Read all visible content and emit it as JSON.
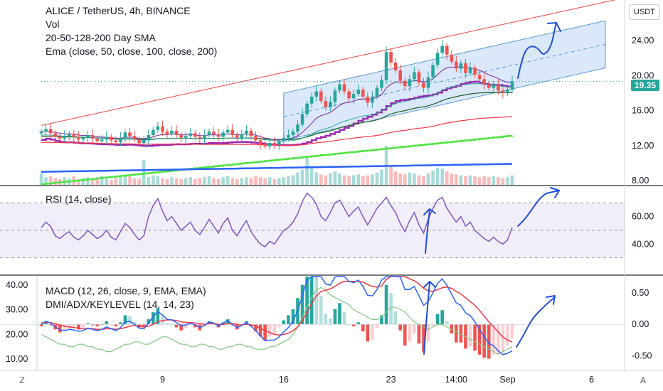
{
  "header": {
    "symbol_line": "ALICE / TetherUS, 4h, BINANCE",
    "indicators": [
      "Vol",
      "20-50-128-200 Day SMA",
      "Ema (close, 50, close, 100, close, 200)"
    ]
  },
  "currency_button": "USDT",
  "last_price": "19.35",
  "corner_buttons": {
    "left": "Z",
    "right": "A"
  },
  "colors": {
    "up": "#26a69a",
    "down": "#ef5350",
    "channel_fill": "#bbd6f5",
    "channel_line": "#5b9bd5",
    "rsi": "#7e57c2",
    "macd": "#2962ff",
    "signal": "#f23645",
    "adx": "#81c784",
    "sma_purple": "#9c27b0",
    "sma_green": "#4caf50",
    "sma_blue": "#2962ff",
    "ema": "#f23645"
  },
  "time_axis": {
    "ticks": [
      "9",
      "16",
      "23",
      "14:00",
      "Sep",
      "6"
    ]
  },
  "chart_data": [
    {
      "type": "candlestick",
      "title": "ALICE / TetherUS, 4h, BINANCE",
      "y_ticks": [
        "24.00",
        "20.00",
        "16.00",
        "12.00",
        "8.00"
      ],
      "ylim": [
        8,
        28
      ],
      "closes": [
        13.6,
        13.9,
        13.4,
        13.0,
        12.8,
        13.1,
        13.3,
        13.0,
        12.7,
        12.9,
        13.2,
        12.8,
        12.5,
        12.7,
        13.0,
        12.6,
        12.4,
        12.9,
        13.5,
        13.1,
        12.7,
        12.3,
        12.6,
        13.2,
        13.8,
        14.2,
        13.6,
        13.3,
        13.7,
        13.2,
        12.9,
        13.1,
        13.4,
        13.0,
        12.8,
        13.2,
        13.6,
        13.3,
        13.0,
        13.5,
        13.8,
        13.2,
        12.9,
        13.3,
        13.7,
        13.1,
        12.6,
        12.2,
        11.9,
        12.3,
        12.1,
        12.5,
        12.9,
        13.2,
        13.6,
        14.4,
        15.6,
        16.8,
        17.6,
        18.2,
        17.1,
        16.4,
        17.0,
        18.3,
        19.0,
        18.2,
        17.4,
        17.9,
        18.4,
        17.6,
        16.9,
        17.6,
        18.6,
        19.5,
        22.7,
        21.5,
        20.6,
        19.4,
        18.8,
        19.6,
        20.4,
        19.2,
        18.6,
        19.8,
        21.2,
        22.6,
        23.4,
        22.4,
        21.6,
        20.8,
        21.4,
        20.3,
        20.9,
        20.1,
        19.6,
        19.0,
        18.6,
        18.9,
        18.3,
        18.0,
        18.4,
        19.35
      ],
      "volume": [
        1.2,
        0.8,
        0.9,
        0.7,
        0.6,
        0.8,
        0.7,
        0.9,
        0.6,
        0.7,
        0.8,
        0.6,
        0.7,
        0.9,
        0.6,
        0.5,
        0.7,
        0.8,
        1.1,
        0.9,
        0.7,
        0.6,
        2.6,
        0.8,
        1.0,
        0.9,
        0.7,
        0.6,
        0.8,
        0.7,
        0.6,
        0.7,
        0.8,
        0.6,
        0.7,
        0.8,
        0.9,
        0.7,
        0.6,
        0.8,
        0.9,
        0.7,
        0.6,
        0.7,
        0.8,
        0.7,
        0.9,
        0.8,
        0.7,
        0.8,
        0.6,
        0.7,
        0.8,
        0.9,
        1.0,
        1.3,
        1.6,
        2.8,
        1.8,
        1.3,
        1.1,
        1.0,
        1.2,
        1.4,
        1.2,
        1.0,
        0.9,
        1.0,
        1.1,
        0.9,
        1.0,
        1.1,
        1.3,
        1.6,
        4.1,
        2.0,
        1.4,
        1.2,
        1.1,
        1.3,
        1.2,
        1.0,
        0.9,
        1.2,
        1.5,
        1.8,
        1.7,
        1.4,
        1.2,
        1.1,
        1.0,
        0.9,
        1.0,
        0.9,
        0.8,
        0.9,
        0.8,
        0.9,
        0.8,
        0.7,
        0.8,
        1.0
      ]
    },
    {
      "type": "line",
      "title": "RSI (14, close)",
      "y_ticks": [
        "60.00",
        "40.00"
      ],
      "ylim": [
        20,
        80
      ],
      "values": [
        52,
        56,
        53,
        46,
        44,
        47,
        49,
        45,
        43,
        46,
        50,
        47,
        44,
        46,
        50,
        45,
        43,
        49,
        55,
        52,
        47,
        43,
        46,
        60,
        68,
        73,
        64,
        57,
        60,
        55,
        50,
        53,
        56,
        50,
        47,
        52,
        58,
        53,
        48,
        55,
        59,
        50,
        46,
        52,
        57,
        49,
        44,
        40,
        38,
        42,
        40,
        45,
        50,
        52,
        56,
        62,
        71,
        77,
        74,
        69,
        60,
        57,
        63,
        70,
        72,
        66,
        60,
        64,
        67,
        60,
        54,
        60,
        66,
        70,
        74,
        68,
        63,
        55,
        49,
        57,
        63,
        54,
        48,
        58,
        66,
        72,
        74,
        66,
        61,
        56,
        60,
        53,
        56,
        50,
        47,
        44,
        42,
        45,
        42,
        40,
        43,
        52
      ]
    },
    {
      "type": "line",
      "title": "MACD (12, 26, close, 9, EMA, EMA)",
      "y_ticks": [
        "0.50",
        "0.00",
        "-0.50"
      ],
      "ylim": [
        -0.65,
        0.7
      ],
      "series": [
        {
          "name": "MACD",
          "values": [
            0.0,
            0.05,
            0.02,
            -0.04,
            -0.09,
            -0.1,
            -0.08,
            -0.09,
            -0.11,
            -0.1,
            -0.06,
            -0.08,
            -0.1,
            -0.08,
            -0.04,
            -0.07,
            -0.1,
            -0.05,
            0.04,
            0.05,
            0.0,
            -0.06,
            -0.07,
            0.02,
            0.12,
            0.2,
            0.15,
            0.08,
            0.07,
            0.03,
            -0.02,
            -0.01,
            0.02,
            -0.01,
            -0.05,
            -0.02,
            0.04,
            0.02,
            -0.03,
            0.02,
            0.06,
            0.0,
            -0.05,
            -0.02,
            0.03,
            -0.03,
            -0.1,
            -0.18,
            -0.26,
            -0.25,
            -0.25,
            -0.2,
            -0.12,
            -0.05,
            0.05,
            0.22,
            0.45,
            0.7,
            0.9,
            0.95,
            0.8,
            0.64,
            0.62,
            0.75,
            0.86,
            0.8,
            0.68,
            0.66,
            0.7,
            0.6,
            0.46,
            0.45,
            0.55,
            0.7,
            1.1,
            1.1,
            0.95,
            0.75,
            0.55,
            0.55,
            0.6,
            0.45,
            0.3,
            0.36,
            0.5,
            0.65,
            0.72,
            0.62,
            0.48,
            0.34,
            0.3,
            0.18,
            0.14,
            0.04,
            -0.08,
            -0.2,
            -0.3,
            -0.34,
            -0.42,
            -0.48,
            -0.46,
            -0.42
          ]
        },
        {
          "name": "Signal",
          "values": [
            0.02,
            0.03,
            0.03,
            0.01,
            -0.01,
            -0.03,
            -0.04,
            -0.05,
            -0.06,
            -0.07,
            -0.07,
            -0.07,
            -0.08,
            -0.08,
            -0.07,
            -0.07,
            -0.08,
            -0.07,
            -0.05,
            -0.03,
            -0.02,
            -0.03,
            -0.04,
            -0.03,
            0.0,
            0.04,
            0.06,
            0.07,
            0.07,
            0.06,
            0.04,
            0.03,
            0.03,
            0.02,
            0.01,
            0.0,
            0.01,
            0.01,
            0.0,
            0.0,
            0.01,
            0.01,
            0.0,
            -0.01,
            0.0,
            -0.01,
            -0.03,
            -0.06,
            -0.1,
            -0.13,
            -0.16,
            -0.17,
            -0.16,
            -0.14,
            -0.1,
            -0.04,
            0.06,
            0.19,
            0.33,
            0.45,
            0.52,
            0.54,
            0.56,
            0.6,
            0.65,
            0.68,
            0.68,
            0.68,
            0.68,
            0.67,
            0.63,
            0.6,
            0.59,
            0.61,
            0.71,
            0.79,
            0.82,
            0.81,
            0.76,
            0.72,
            0.69,
            0.64,
            0.57,
            0.53,
            0.52,
            0.55,
            0.58,
            0.59,
            0.57,
            0.52,
            0.48,
            0.42,
            0.36,
            0.3,
            0.22,
            0.13,
            0.04,
            -0.04,
            -0.12,
            -0.2,
            -0.25,
            -0.28
          ]
        }
      ]
    },
    {
      "type": "line",
      "title": "DMI/ADX/KEYLEVEL (14, 14, 23)",
      "y_ticks": [
        "40.00",
        "30.00",
        "20.00",
        "10.00"
      ],
      "ylim": [
        8,
        42
      ],
      "values": [
        20,
        19,
        18,
        17,
        16,
        16,
        15,
        15,
        16,
        16,
        15,
        15,
        14,
        14,
        13,
        13,
        14,
        15,
        16,
        16,
        17,
        17,
        16,
        16,
        17,
        18,
        19,
        19,
        18,
        17,
        16,
        16,
        15,
        15,
        16,
        16,
        15,
        15,
        14,
        14,
        15,
        15,
        16,
        16,
        15,
        15,
        14,
        14,
        14,
        15,
        15,
        16,
        17,
        18,
        20,
        23,
        27,
        31,
        35,
        38,
        39,
        38,
        36,
        35,
        34,
        33,
        32,
        30,
        29,
        28,
        27,
        26,
        26,
        27,
        29,
        31,
        31,
        30,
        29,
        27,
        25,
        24,
        23,
        22,
        23,
        24,
        24,
        23,
        22,
        21,
        20,
        19,
        18,
        17,
        16,
        15,
        14,
        13,
        12,
        13,
        14,
        15
      ]
    }
  ]
}
